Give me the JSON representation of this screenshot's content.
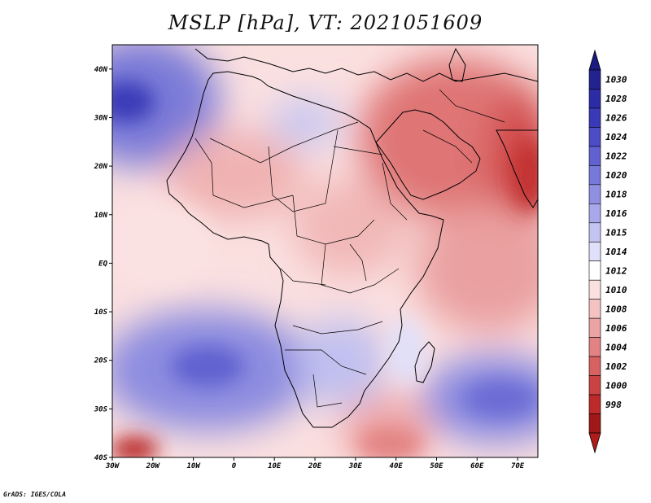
{
  "title": "MSLP [hPa], VT: 2021051609",
  "credit": "GrADS: IGES/COLA",
  "map": {
    "lat_labels": [
      "40N",
      "30N",
      "20N",
      "10N",
      "EQ",
      "10S",
      "20S",
      "30S",
      "40S"
    ],
    "lon_labels": [
      "30W",
      "20W",
      "10W",
      "0",
      "10E",
      "20E",
      "30E",
      "40E",
      "50E",
      "60E",
      "70E"
    ],
    "lon_range": [
      -30,
      75
    ],
    "lat_range": [
      -40,
      45
    ]
  },
  "colorbar": {
    "levels": [
      "1030",
      "1028",
      "1026",
      "1024",
      "1022",
      "1020",
      "1018",
      "1016",
      "1015",
      "1014",
      "1012",
      "1010",
      "1008",
      "1006",
      "1004",
      "1002",
      "1000",
      "998"
    ],
    "colors": [
      "#23238f",
      "#2c2ca6",
      "#3a3ab8",
      "#4c4cc6",
      "#6161d0",
      "#7878da",
      "#9090e2",
      "#a8a8ea",
      "#c4c4f2",
      "#e0e0fa",
      "#ffffff",
      "#fbe0e0",
      "#f4c2c2",
      "#eca3a3",
      "#e38282",
      "#d86161",
      "#cb4242",
      "#bc2a2a",
      "#a01818"
    ],
    "top_arrow_color": "#1a1a80",
    "bottom_arrow_color": "#b01c1c"
  }
}
